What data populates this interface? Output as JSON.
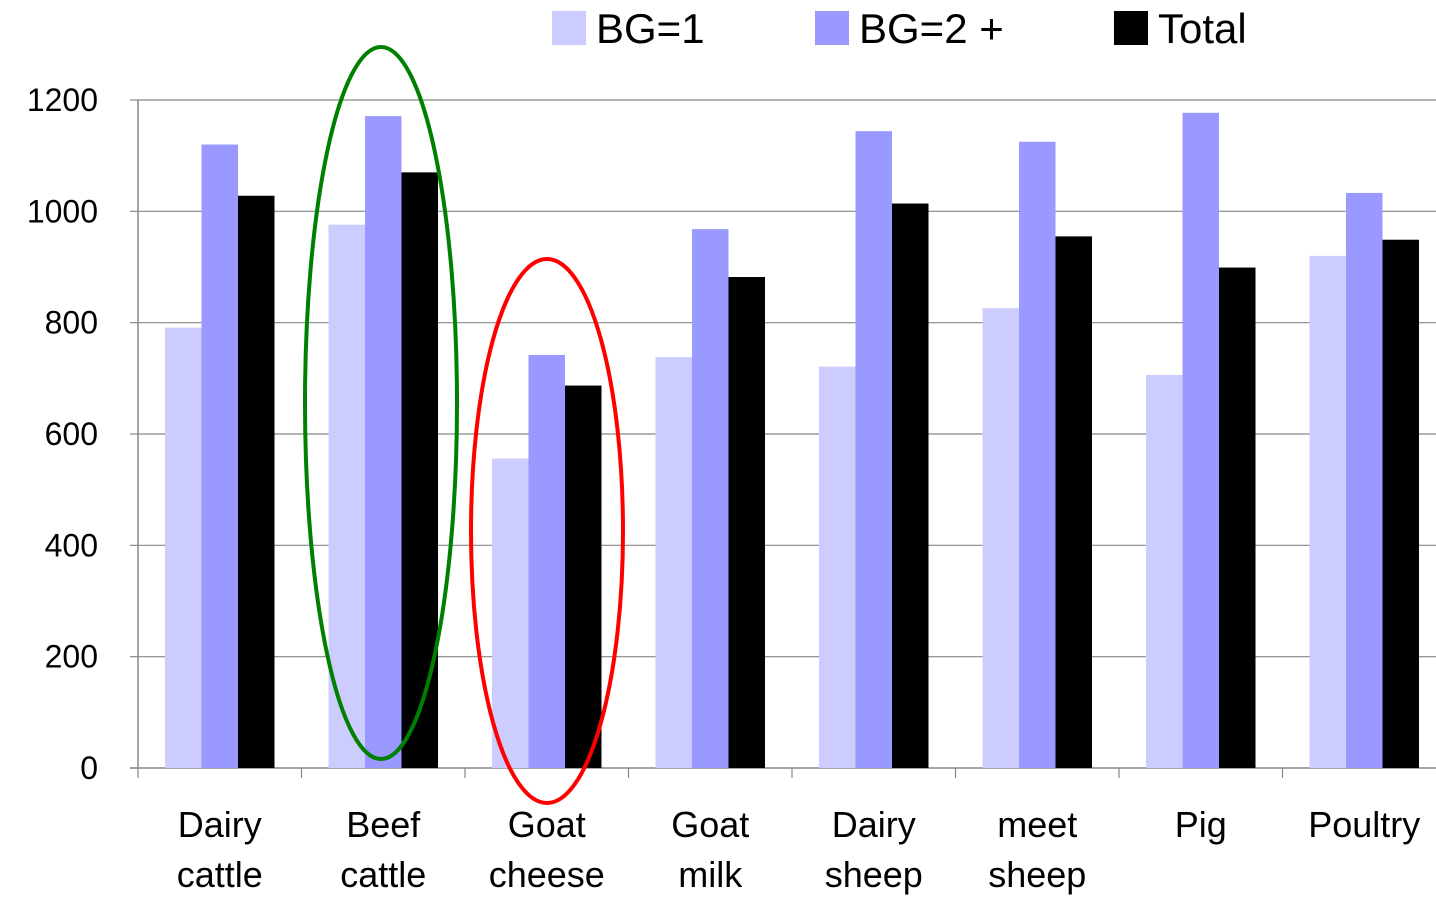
{
  "chart_data": {
    "type": "bar",
    "categories": [
      [
        "Dairy",
        "cattle"
      ],
      [
        "Beef",
        "cattle"
      ],
      [
        "Goat",
        "cheese"
      ],
      [
        "Goat",
        "milk"
      ],
      [
        "Dairy",
        "sheep"
      ],
      [
        "meet",
        "sheep"
      ],
      [
        "Pig"
      ],
      [
        "Poultry"
      ]
    ],
    "series": [
      {
        "name": "BG=1",
        "color": "#ccccff",
        "values": [
          791,
          976,
          556,
          738,
          721,
          826,
          706,
          920
        ]
      },
      {
        "name": "BG=2 +",
        "color": "#9999ff",
        "values": [
          1120,
          1171,
          742,
          968,
          1144,
          1125,
          1177,
          1033
        ]
      },
      {
        "name": "Total",
        "color": "#000000",
        "values": [
          1028,
          1070,
          687,
          882,
          1014,
          955,
          899,
          949
        ]
      }
    ],
    "ylim": [
      0,
      1200
    ],
    "yticks": [
      0,
      200,
      400,
      600,
      800,
      1000,
      1200
    ],
    "grid": true,
    "legend_position": "top",
    "highlights": [
      {
        "category_index": 1,
        "color": "#008000"
      },
      {
        "category_index": 2,
        "color": "#ff0000"
      }
    ]
  }
}
